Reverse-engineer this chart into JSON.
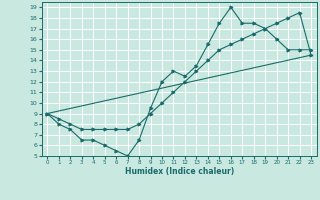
{
  "xlabel": "Humidex (Indice chaleur)",
  "bg_color": "#c8e8e0",
  "grid_color": "#ffffff",
  "line_color": "#1a6b6b",
  "xlim": [
    -0.5,
    23.5
  ],
  "ylim": [
    5,
    19.5
  ],
  "xticks": [
    0,
    1,
    2,
    3,
    4,
    5,
    6,
    7,
    8,
    9,
    10,
    11,
    12,
    13,
    14,
    15,
    16,
    17,
    18,
    19,
    20,
    21,
    22,
    23
  ],
  "yticks": [
    5,
    6,
    7,
    8,
    9,
    10,
    11,
    12,
    13,
    14,
    15,
    16,
    17,
    18,
    19
  ],
  "line1_x": [
    0,
    1,
    2,
    3,
    4,
    5,
    6,
    7,
    8,
    9,
    10,
    11,
    12,
    13,
    14,
    15,
    16,
    17,
    18,
    19,
    20,
    21,
    22,
    23
  ],
  "line1_y": [
    9,
    8,
    7.5,
    6.5,
    6.5,
    6,
    5.5,
    5,
    6.5,
    9.5,
    12,
    13,
    12.5,
    13.5,
    15.5,
    17.5,
    19,
    17.5,
    17.5,
    17,
    16,
    15,
    15,
    15
  ],
  "line2_x": [
    0,
    1,
    2,
    3,
    4,
    5,
    6,
    7,
    8,
    9,
    10,
    11,
    12,
    13,
    14,
    15,
    16,
    17,
    18,
    19,
    20,
    21,
    22,
    23
  ],
  "line2_y": [
    9,
    8.5,
    8,
    7.5,
    7.5,
    7.5,
    7.5,
    7.5,
    8,
    9,
    10,
    11,
    12,
    13,
    14,
    15,
    15.5,
    16,
    16.5,
    17,
    17.5,
    18,
    18.5,
    14.5
  ],
  "line3_x": [
    0,
    23
  ],
  "line3_y": [
    9,
    14.5
  ]
}
